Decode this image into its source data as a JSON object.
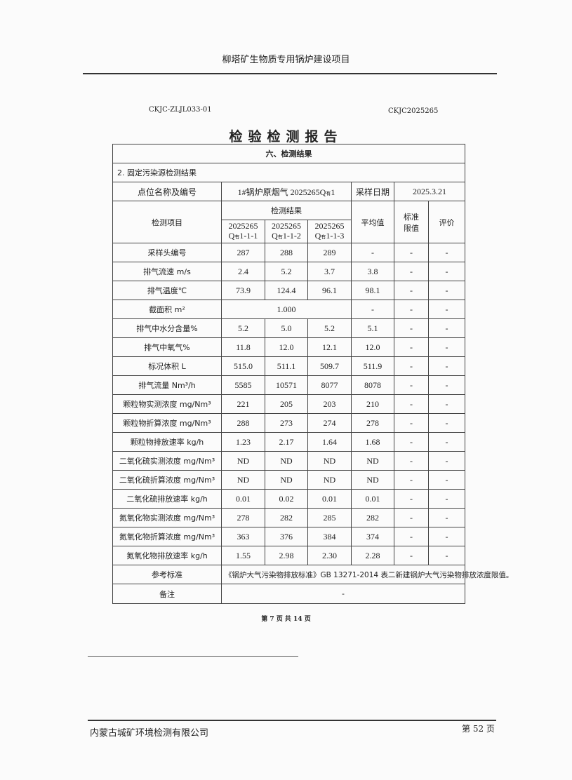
{
  "header": {
    "project_title": "柳塔矿生物质专用锅炉建设项目"
  },
  "doc_code_left": "CKJC-ZLJL033-01",
  "doc_code_right": "CKJC2025265",
  "report_title": "检验检测报告",
  "section_title": "六、检测结果",
  "subsection_title": "2. 固定污染源检测结果",
  "point_label": "点位名称及编号",
  "point_value": "1#锅炉原烟气 2025265Q",
  "point_value_sub": "有",
  "point_value_suffix": "1",
  "sampling_date_label": "采样日期",
  "sampling_date": "2025.3.21",
  "columns": {
    "item": "检测项目",
    "results": "检测结果",
    "samples": [
      {
        "top": "2025265",
        "prefix": "Q",
        "sub": "有",
        "suffix": "1-1-1"
      },
      {
        "top": "2025265",
        "prefix": "Q",
        "sub": "有",
        "suffix": "1-1-2"
      },
      {
        "top": "2025265",
        "prefix": "Q",
        "sub": "有",
        "suffix": "1-1-3"
      }
    ],
    "average": "平均值",
    "standard_limit": "标准限值",
    "evaluation": "评价"
  },
  "rows": [
    {
      "item": "采样头编号",
      "v": [
        "287",
        "288",
        "289"
      ],
      "avg": "-",
      "limit": "-",
      "eval": "-"
    },
    {
      "item": "排气流速 m/s",
      "v": [
        "2.4",
        "5.2",
        "3.7"
      ],
      "avg": "3.8",
      "limit": "-",
      "eval": "-"
    },
    {
      "item": "排气温度℃",
      "v": [
        "73.9",
        "124.4",
        "96.1"
      ],
      "avg": "98.1",
      "limit": "-",
      "eval": "-"
    },
    {
      "item": "截面积 m²",
      "merged": "1.000",
      "avg": "-",
      "limit": "-",
      "eval": "-"
    },
    {
      "item": "排气中水分含量%",
      "v": [
        "5.2",
        "5.0",
        "5.2"
      ],
      "avg": "5.1",
      "limit": "-",
      "eval": "-"
    },
    {
      "item": "排气中氧气%",
      "v": [
        "11.8",
        "12.0",
        "12.1"
      ],
      "avg": "12.0",
      "limit": "-",
      "eval": "-"
    },
    {
      "item": "标况体积 L",
      "v": [
        "515.0",
        "511.1",
        "509.7"
      ],
      "avg": "511.9",
      "limit": "-",
      "eval": "-"
    },
    {
      "item": "排气流量 Nm³/h",
      "v": [
        "5585",
        "10571",
        "8077"
      ],
      "avg": "8078",
      "limit": "-",
      "eval": "-"
    },
    {
      "item": "颗粒物实测浓度 mg/Nm³",
      "v": [
        "221",
        "205",
        "203"
      ],
      "avg": "210",
      "limit": "-",
      "eval": "-"
    },
    {
      "item": "颗粒物折算浓度 mg/Nm³",
      "v": [
        "288",
        "273",
        "274"
      ],
      "avg": "278",
      "limit": "-",
      "eval": "-"
    },
    {
      "item": "颗粒物排放速率 kg/h",
      "v": [
        "1.23",
        "2.17",
        "1.64"
      ],
      "avg": "1.68",
      "limit": "-",
      "eval": "-"
    },
    {
      "item": "二氧化硫实测浓度 mg/Nm³",
      "v": [
        "ND",
        "ND",
        "ND"
      ],
      "avg": "ND",
      "limit": "-",
      "eval": "-"
    },
    {
      "item": "二氧化硫折算浓度 mg/Nm³",
      "v": [
        "ND",
        "ND",
        "ND"
      ],
      "avg": "ND",
      "limit": "-",
      "eval": "-"
    },
    {
      "item": "二氧化硫排放速率 kg/h",
      "v": [
        "0.01",
        "0.02",
        "0.01"
      ],
      "avg": "0.01",
      "limit": "-",
      "eval": "-"
    },
    {
      "item": "氮氧化物实测浓度 mg/Nm³",
      "v": [
        "278",
        "282",
        "285"
      ],
      "avg": "282",
      "limit": "-",
      "eval": "-"
    },
    {
      "item": "氮氧化物折算浓度 mg/Nm³",
      "v": [
        "363",
        "376",
        "384"
      ],
      "avg": "374",
      "limit": "-",
      "eval": "-"
    },
    {
      "item": "氮氧化物排放速率 kg/h",
      "v": [
        "1.55",
        "2.98",
        "2.30"
      ],
      "avg": "2.28",
      "limit": "-",
      "eval": "-"
    }
  ],
  "reference_label": "参考标准",
  "reference_value": "《锅炉大气污染物排放标准》GB 13271-2014 表二新建锅炉大气污染物排放浓度限值。",
  "remarks_label": "备注",
  "remarks_value": "-",
  "inner_page": "第 7 页 共 14 页",
  "footer": {
    "company": "内蒙古城矿环境检测有限公司",
    "page": "第 52 页"
  }
}
